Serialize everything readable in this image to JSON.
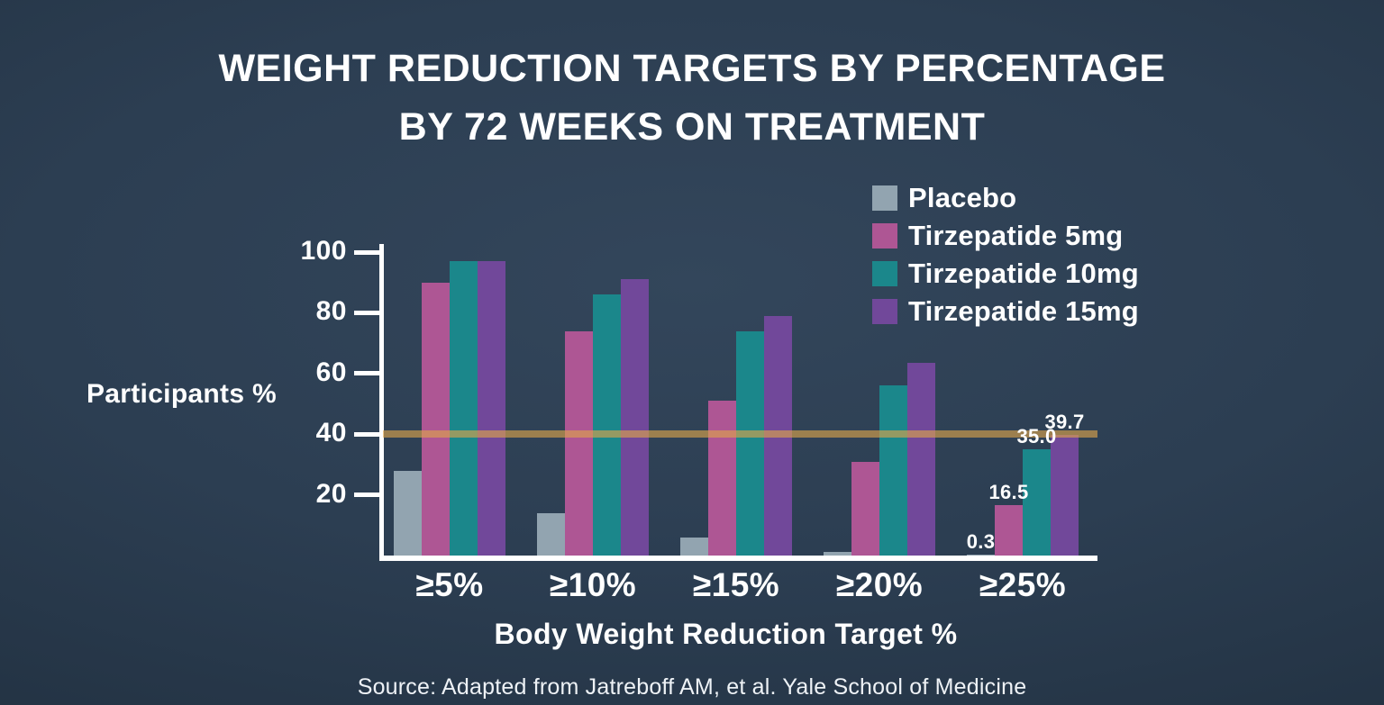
{
  "title": {
    "line1": "WEIGHT REDUCTION TARGETS BY PERCENTAGE",
    "line2": "BY 72 WEEKS ON TREATMENT"
  },
  "source": "Source: Adapted from Jatreboff AM, et al. Yale School of Medicine",
  "chart_data": {
    "type": "bar",
    "title": "WEIGHT REDUCTION TARGETS BY PERCENTAGE BY 72 WEEKS ON TREATMENT",
    "categories": [
      "≥5%",
      "≥10%",
      "≥15%",
      "≥20%",
      "≥25%"
    ],
    "series": [
      {
        "name": "Placebo",
        "color": "#92a4b0",
        "values": [
          28,
          14,
          6,
          1.3,
          0.3
        ]
      },
      {
        "name": "Tirzepatide 5mg",
        "color": "#ae5694",
        "values": [
          90,
          74,
          51,
          31,
          16.5
        ]
      },
      {
        "name": "Tirzepatide 10mg",
        "color": "#1b878b",
        "values": [
          97,
          86,
          74,
          56,
          35.0
        ]
      },
      {
        "name": "Tirzepatide 15mg",
        "color": "#71489a",
        "values": [
          97,
          91,
          79,
          63.5,
          39.7
        ]
      }
    ],
    "value_labels": {
      "category_index": 4,
      "labels": [
        "0.3",
        "16.5",
        "35.0",
        "39.7"
      ]
    },
    "xlabel": "Body Weight Reduction Target %",
    "ylabel": "Participants %",
    "yticks": [
      20,
      40,
      60,
      80,
      100
    ],
    "ylim": [
      0,
      100
    ],
    "grid": false,
    "legend_position": "top-right",
    "reference_line": {
      "value": 40,
      "color": "#d8a64a"
    },
    "axis_color": "#ffffff",
    "background_color": "#2c3e52",
    "text_color": "#ffffff"
  }
}
